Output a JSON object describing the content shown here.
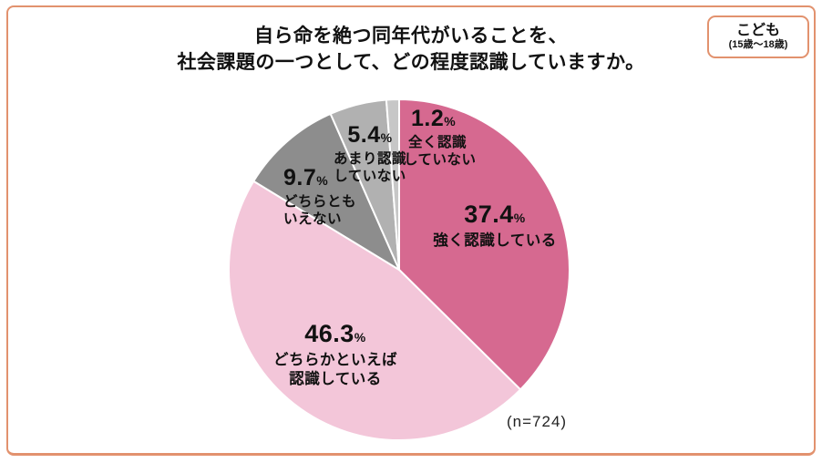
{
  "title": {
    "line1": "自ら命を絶つ同年代がいることを、",
    "line2": "社会課題の一つとして、どの程度認識していますか。"
  },
  "badge": {
    "label": "こども",
    "sublabel": "(15歳〜18歳)"
  },
  "sample_size": "(n=724)",
  "colors": {
    "frame_border": "#e2926e",
    "text": "#111111"
  },
  "chart_data": {
    "type": "pie",
    "title": "自ら命を絶つ同年代がいることを、社会課題の一つとして、どの程度認識していますか。",
    "unit": "%",
    "start_angle_deg": 0,
    "direction": "clockwise",
    "separator_color": "#ffffff",
    "slices": [
      {
        "label": "強く認識している",
        "value": 37.4,
        "value_text": "37.4",
        "color": "#d66990",
        "label_lines": [
          "強く認識している"
        ]
      },
      {
        "label": "どちらかといえば認識している",
        "value": 46.3,
        "value_text": "46.3",
        "color": "#f3c6d9",
        "label_lines": [
          "どちらかといえば",
          "認識している"
        ]
      },
      {
        "label": "どちらともいえない",
        "value": 9.7,
        "value_text": "9.7",
        "color": "#8d8d8d",
        "label_lines": [
          "どちらとも",
          "いえない"
        ]
      },
      {
        "label": "あまり認識していない",
        "value": 5.4,
        "value_text": "5.4",
        "color": "#b1b1b1",
        "label_lines": [
          "あまり認識",
          "していない"
        ]
      },
      {
        "label": "全く認識していない",
        "value": 1.2,
        "value_text": "1.2",
        "color": "#c7c7c7",
        "label_lines": [
          "全く認識",
          "していない"
        ]
      }
    ]
  }
}
